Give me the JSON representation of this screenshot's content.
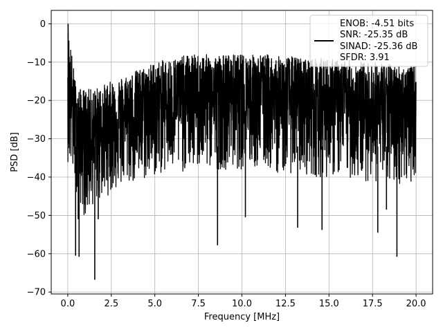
{
  "chart_data": {
    "type": "line",
    "title": "",
    "xlabel": "Frequency [MHz]",
    "ylabel": "PSD [dB]",
    "xlim": [
      -0.95,
      20.95
    ],
    "ylim": [
      -70.5,
      3.5
    ],
    "grid": true,
    "legend_placement": "top-right",
    "line_color": "#000000",
    "x_ticks": [
      {
        "value": 0.0,
        "label": "0.0"
      },
      {
        "value": 2.5,
        "label": "2.5"
      },
      {
        "value": 5.0,
        "label": "5.0"
      },
      {
        "value": 7.5,
        "label": "7.5"
      },
      {
        "value": 10.0,
        "label": "10.0"
      },
      {
        "value": 12.5,
        "label": "12.5"
      },
      {
        "value": 15.0,
        "label": "15.0"
      },
      {
        "value": 17.5,
        "label": "17.5"
      },
      {
        "value": 20.0,
        "label": "20.0"
      }
    ],
    "y_ticks": [
      {
        "value": 0,
        "label": "0"
      },
      {
        "value": -10,
        "label": "−10"
      },
      {
        "value": -20,
        "label": "−20"
      },
      {
        "value": -30,
        "label": "−30"
      },
      {
        "value": -40,
        "label": "−40"
      },
      {
        "value": -50,
        "label": "−50"
      },
      {
        "value": -60,
        "label": "−60"
      },
      {
        "value": -70,
        "label": "−70"
      }
    ],
    "legend_lines": [
      "ENOB: -4.51 bits",
      "SNR: -25.35 dB",
      "SINAD: -25.36 dB",
      "SFDR: 3.91"
    ],
    "series": [
      {
        "x": [
          0.0,
          0.5,
          1.0,
          1.5,
          2.0,
          2.5,
          3.0,
          3.5,
          4.0,
          4.5,
          5.0,
          5.5,
          6.0,
          6.5,
          7.0,
          7.5,
          8.0,
          8.5,
          9.0,
          9.5,
          10.0,
          10.5,
          11.0,
          11.5,
          12.0,
          12.5,
          13.0,
          13.5,
          14.0,
          14.5,
          15.0,
          15.5,
          16.0,
          16.5,
          17.0,
          17.5,
          18.0,
          18.5,
          19.0,
          19.5,
          20.0
        ],
        "y_upper": [
          0,
          -17,
          -17,
          -17,
          -16,
          -15,
          -14,
          -13,
          -12,
          -11,
          -10,
          -9.5,
          -9,
          -8.5,
          -8,
          -8,
          -8,
          -8,
          -8,
          -8,
          -8,
          -8,
          -8,
          -8,
          -8.5,
          -8.5,
          -8.5,
          -9,
          -9,
          -9,
          -9,
          -9.5,
          -9.5,
          -9.5,
          -10,
          -10,
          -10,
          -10.5,
          -10.5,
          -11,
          -11
        ],
        "y_lower": [
          -36,
          -44,
          -51,
          -47,
          -46,
          -44,
          -43,
          -42,
          -42,
          -41,
          -40,
          -39,
          -39,
          -39,
          -38,
          -38,
          -38,
          -38,
          -38,
          -38,
          -38,
          -38,
          -38,
          -38,
          -39,
          -39,
          -39,
          -39,
          -40,
          -40,
          -40,
          -40,
          -40,
          -41,
          -41,
          -41,
          -42,
          -42,
          -42,
          -42,
          -40
        ]
      }
    ],
    "spikes": [
      {
        "x": 0.02,
        "y": 0
      },
      {
        "x": 0.45,
        "y": -60.5
      },
      {
        "x": 0.65,
        "y": -60.8
      },
      {
        "x": 0.6,
        "y": -51
      },
      {
        "x": 1.55,
        "y": -66.8
      },
      {
        "x": 1.75,
        "y": -51
      },
      {
        "x": 8.6,
        "y": -57.8
      },
      {
        "x": 10.2,
        "y": -50.5
      },
      {
        "x": 13.2,
        "y": -53.2
      },
      {
        "x": 14.6,
        "y": -53.8
      },
      {
        "x": 17.8,
        "y": -54.5
      },
      {
        "x": 18.9,
        "y": -60.8
      },
      {
        "x": 18.3,
        "y": -48.5
      }
    ]
  }
}
